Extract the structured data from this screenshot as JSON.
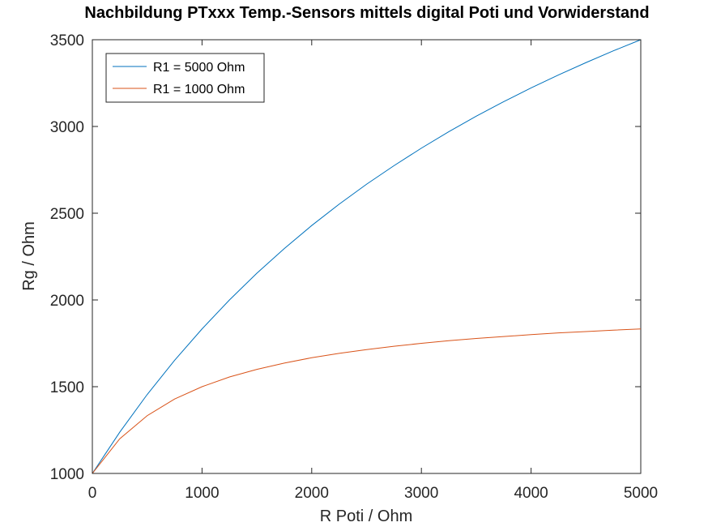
{
  "chart_data": {
    "type": "line",
    "title": "Nachbildung PTxxx Temp.-Sensors mittels digital Poti und Vorwiderstand",
    "xlabel": "R Poti / Ohm",
    "ylabel": "Rg / Ohm",
    "xlim": [
      0,
      5000
    ],
    "ylim": [
      1000,
      3500
    ],
    "xticks": [
      0,
      1000,
      2000,
      3000,
      4000,
      5000
    ],
    "yticks": [
      1000,
      1500,
      2000,
      2500,
      3000,
      3500
    ],
    "grid": false,
    "legend_position": "top-left",
    "x": [
      0,
      250,
      500,
      750,
      1000,
      1250,
      1500,
      1750,
      2000,
      2250,
      2500,
      2750,
      3000,
      3250,
      3500,
      3750,
      4000,
      4250,
      4500,
      4750,
      5000
    ],
    "series": [
      {
        "name": "R1 = 5000 Ohm",
        "color": "#0072bd",
        "values": [
          1000,
          1238,
          1455,
          1652,
          1833,
          2000,
          2154,
          2296,
          2429,
          2552,
          2667,
          2774,
          2875,
          2970,
          3059,
          3143,
          3222,
          3297,
          3368,
          3436,
          3500
        ]
      },
      {
        "name": "R1 = 1000 Ohm",
        "color": "#d95319",
        "values": [
          1000,
          1200,
          1333,
          1429,
          1500,
          1556,
          1600,
          1636,
          1667,
          1692,
          1714,
          1733,
          1750,
          1765,
          1778,
          1789,
          1800,
          1810,
          1818,
          1826,
          1833
        ]
      }
    ]
  }
}
